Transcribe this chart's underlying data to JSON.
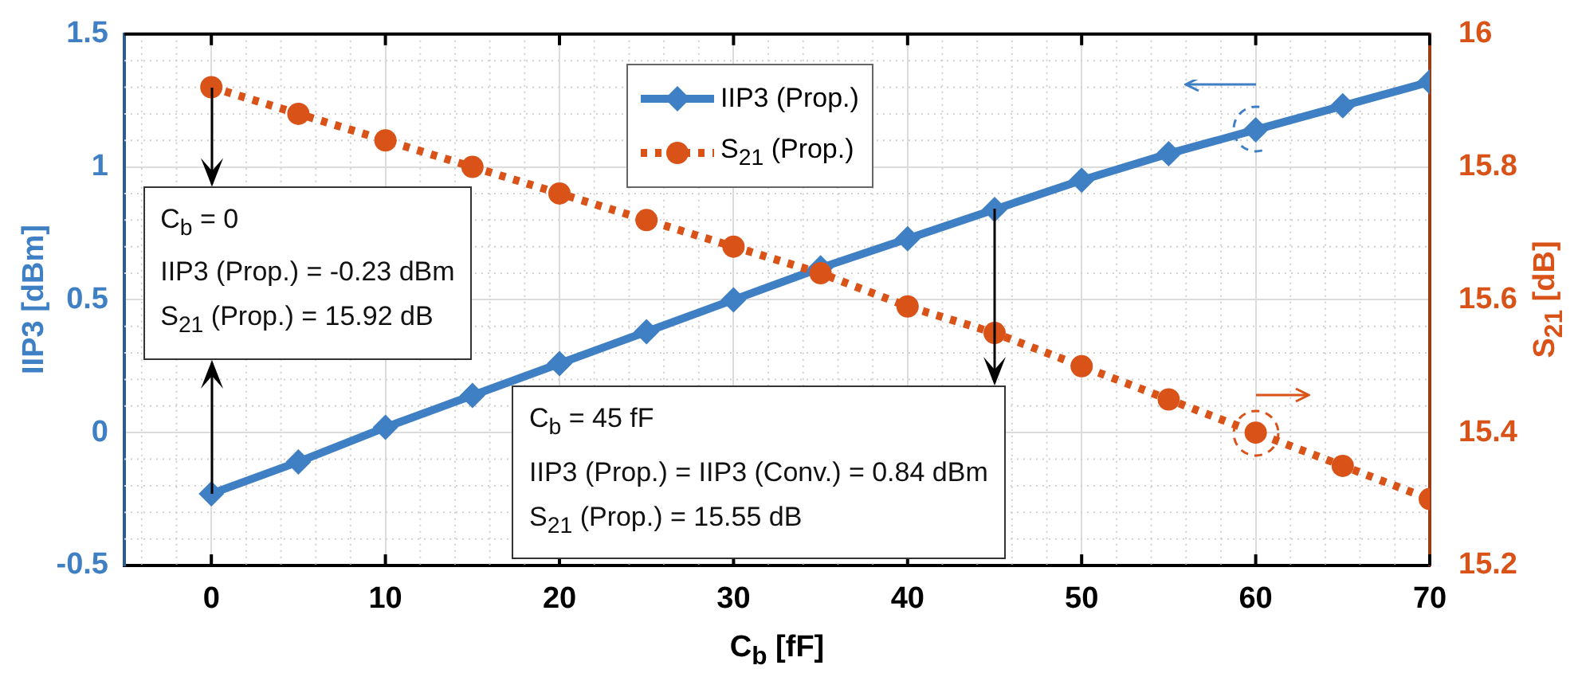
{
  "chart_data": {
    "type": "line",
    "xlabel": "C$_{b}$ [fF]",
    "ylabel": "IIP3 [dBm]",
    "y2label": "S$_{21}$ [dB]",
    "x": [
      0,
      5,
      10,
      15,
      20,
      25,
      30,
      35,
      40,
      45,
      50,
      55,
      60,
      65,
      70
    ],
    "series": [
      {
        "name": "IIP3 (Prop.)",
        "color": "#3f7fc4",
        "marker": "diamond",
        "line_style": "solid",
        "values": [
          -0.23,
          -0.11,
          0.02,
          0.14,
          0.26,
          0.38,
          0.5,
          0.62,
          0.73,
          0.84,
          0.95,
          1.05,
          1.14,
          1.23,
          1.32
        ]
      },
      {
        "name": "S$_{21}$ (Prop.)",
        "color": "#d95319",
        "marker": "circle",
        "line_style": "dotted",
        "axis": "y2",
        "values": [
          15.92,
          15.88,
          15.84,
          15.8,
          15.76,
          15.72,
          15.68,
          15.64,
          15.59,
          15.55,
          15.5,
          15.45,
          15.4,
          15.35,
          15.3
        ]
      }
    ],
    "xlim": [
      -5,
      70
    ],
    "xticks": [
      0,
      10,
      20,
      30,
      40,
      50,
      60,
      70
    ],
    "ylim": [
      -0.5,
      1.5
    ],
    "yticks": [
      -0.5,
      0,
      0.5,
      1,
      1.5
    ],
    "y2lim": [
      15.2,
      16
    ],
    "y2ticks": [
      15.2,
      15.4,
      15.6,
      15.8,
      16
    ],
    "grid": true,
    "legend": "top",
    "annotations": [
      {
        "text": "C$_{b}$ = 0\nIIP3 (Prop.) = -0.23 dBm\nS$_{21}$ (Prop.) = 15.92 dB",
        "x": 0,
        "y": -0.23
      },
      {
        "text": "C$_{b}$ = 45 fF\nIIP3 (Prop.) = IIP3 (Conv.) = 0.84 dBm\nS$_{21}$ (Prop.) = 15.55 dB",
        "x": 45,
        "y": 0.84
      }
    ]
  }
}
